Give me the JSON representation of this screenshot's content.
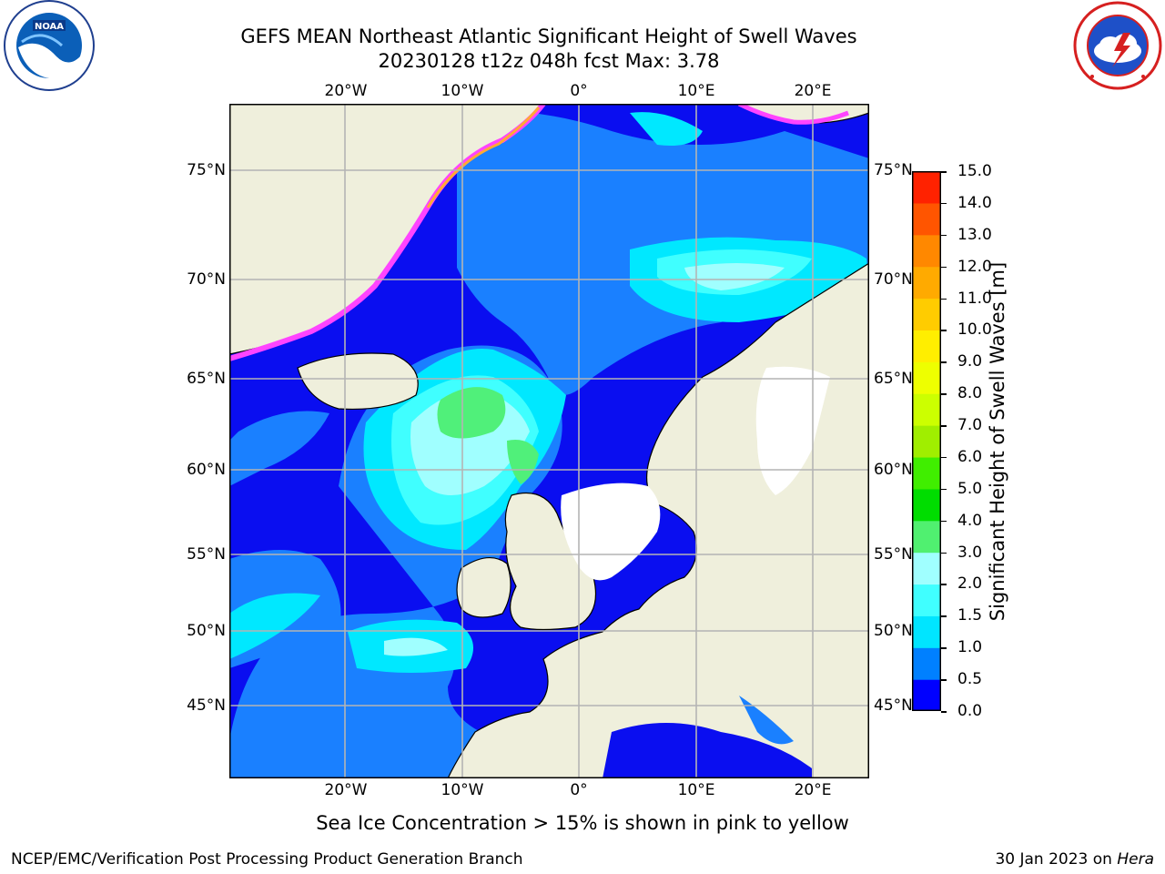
{
  "title": {
    "line1": "GEFS MEAN Northeast Atlantic Significant Height of Swell Waves",
    "line2": "20230128 t12z 048h fcst   Max: 3.78"
  },
  "logos": {
    "left": "noora-logo",
    "right": "nws-logo"
  },
  "axes": {
    "lon_ticks": [
      "20°W",
      "10°W",
      "0°",
      "10°E",
      "20°E"
    ],
    "lat_ticks_left": [
      "75°N",
      "70°N",
      "65°N",
      "60°N",
      "55°N",
      "50°N",
      "45°N"
    ],
    "lat_ticks_right": [
      "75°N",
      "70°N",
      "65°N",
      "60°N",
      "55°N",
      "50°N",
      "45°N"
    ]
  },
  "colorbar": {
    "label": "Significant Height of Swell Waves [m]",
    "ticks": [
      "15.0",
      "14.0",
      "13.0",
      "12.0",
      "11.0",
      "10.0",
      "9.0",
      "8.0",
      "7.0",
      "6.0",
      "5.0",
      "4.0",
      "3.0",
      "2.0",
      "1.5",
      "1.0",
      "0.5",
      "0.0"
    ],
    "colors": [
      "#0000ff",
      "#0080ff",
      "#00e5ff",
      "#40ffff",
      "#a0ffff",
      "#50f070",
      "#00dd00",
      "#40ee00",
      "#a0ee00",
      "#ccff00",
      "#eeff00",
      "#ffee00",
      "#ffcc00",
      "#ffaa00",
      "#ff8800",
      "#ff5500",
      "#ff2200"
    ]
  },
  "map_colors": {
    "land": "#efefdc",
    "ocean": "#0a0ef0",
    "mid": "#1a80ff",
    "cyan": "#00e8ff",
    "light_cyan": "#a0ffff",
    "green": "#50f07a",
    "ice_pink": "#ff44ff",
    "ice_orange": "#ffaa33",
    "ice_yellow": "#ffff33",
    "grid": "#b4b4b4"
  },
  "caption": "Sea Ice Concentration > 15% is shown in pink to yellow",
  "footer": {
    "left": "NCEP/EMC/Verification Post Processing Product Generation Branch",
    "right_date": "30 Jan 2023 on ",
    "right_host": "Hera"
  }
}
